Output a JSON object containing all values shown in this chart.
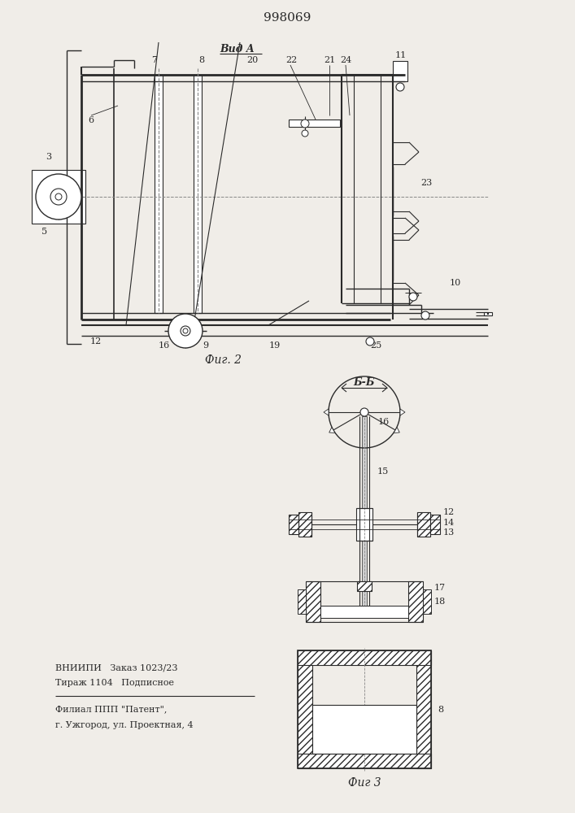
{
  "title": "998069",
  "fig2_label": "Фиг. 2",
  "fig3_label": "Фиг 3",
  "vida_label": "Вид A",
  "bb_label": "Б-Б",
  "bottom_text1": "ВНИИПИ   Заказ 1023/23",
  "bottom_text2": "Тираж 1104   Подписное",
  "bottom_text3": "Филиал ППП \"Патент\",",
  "bottom_text4": "г. Ужгород, ул. Проектная, 4",
  "bg_color": "#f0ede8",
  "line_color": "#2a2a2a"
}
